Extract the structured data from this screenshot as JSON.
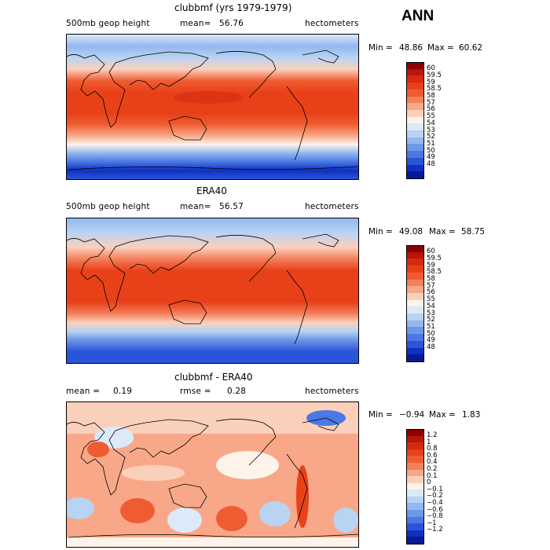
{
  "season": "ANN",
  "panels": [
    {
      "title": "clubbmf (yrs 1979-1979)",
      "variable": "500mb geop height",
      "mean_label": "mean=",
      "mean_value": "56.76",
      "units": "hectometers",
      "min_label": "Min =",
      "min_value": "48.86",
      "max_label": "Max =",
      "max_value": "60.62",
      "colorbar_labels": [
        "60",
        "59.5",
        "59",
        "58.5",
        "58",
        "57",
        "56",
        "55",
        "54",
        "53",
        "52",
        "51",
        "50",
        "49",
        "48"
      ],
      "colorbar_colors": [
        "#8b0000",
        "#b8150d",
        "#d52a10",
        "#e8411a",
        "#f05c32",
        "#f4805c",
        "#f8a888",
        "#fbd0bb",
        "#fdf3ea",
        "#dbe9f8",
        "#b9d3f3",
        "#93b7ee",
        "#6d98e8",
        "#4a78e4",
        "#2a55d8",
        "#1030c0",
        "#071a96"
      ]
    },
    {
      "title": "ERA40",
      "variable": "500mb geop height",
      "mean_label": "mean=",
      "mean_value": "56.57",
      "units": "hectometers",
      "min_label": "Min =",
      "min_value": "49.08",
      "max_label": "Max =",
      "max_value": "58.75",
      "colorbar_labels": [
        "60",
        "59.5",
        "59",
        "58.5",
        "58",
        "57",
        "56",
        "55",
        "54",
        "53",
        "52",
        "51",
        "50",
        "49",
        "48"
      ],
      "colorbar_colors": [
        "#8b0000",
        "#b8150d",
        "#d52a10",
        "#e8411a",
        "#f05c32",
        "#f4805c",
        "#f8a888",
        "#fbd0bb",
        "#fdf3ea",
        "#dbe9f8",
        "#b9d3f3",
        "#93b7ee",
        "#6d98e8",
        "#4a78e4",
        "#2a55d8",
        "#1030c0",
        "#071a96"
      ]
    },
    {
      "title": "clubbmf - ERA40",
      "variable": "",
      "mean_label": "mean =",
      "mean_value": "0.19",
      "rmse_label": "rmse =",
      "rmse_value": "0.28",
      "units": "hectometers",
      "min_label": "Min =",
      "min_value": "−0.94",
      "max_label": "Max =",
      "max_value": "1.83",
      "colorbar_labels": [
        "1.2",
        "1",
        "0.8",
        "0.6",
        "0.4",
        "0.2",
        "0.1",
        "0",
        "−0.1",
        "−0.2",
        "−0.4",
        "−0.6",
        "−0.8",
        "−1",
        "−1.2"
      ],
      "colorbar_colors": [
        "#8b0000",
        "#b8150d",
        "#d52a10",
        "#e8411a",
        "#f05c32",
        "#f4805c",
        "#f8a888",
        "#fbd0bb",
        "#fdf3ea",
        "#dbe9f8",
        "#b9d3f3",
        "#93b7ee",
        "#6d98e8",
        "#4a78e4",
        "#2a55d8",
        "#1030c0",
        "#071a96"
      ]
    }
  ]
}
